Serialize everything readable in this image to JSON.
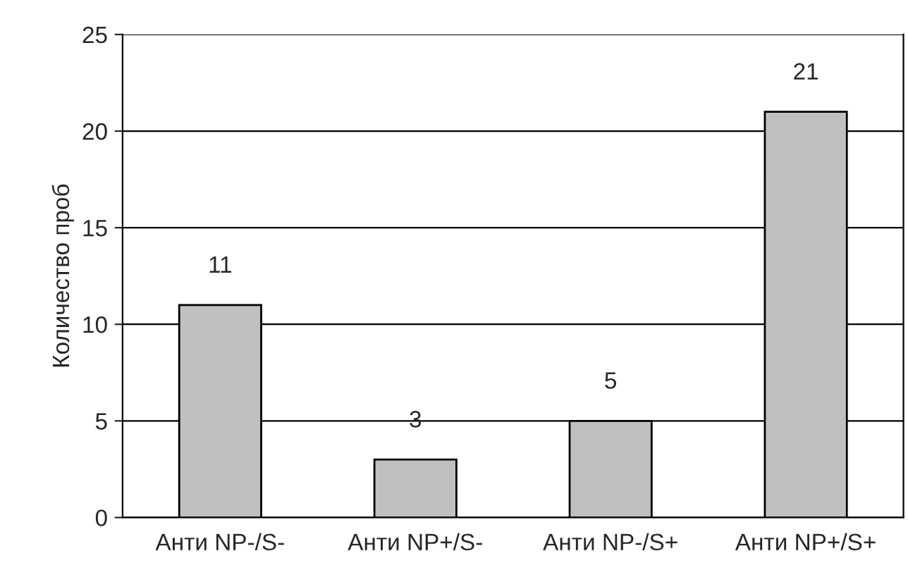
{
  "chart_data": {
    "type": "bar",
    "ylabel": "Количество проб",
    "categories": [
      "Анти NP-/S-",
      "Анти NP+/S-",
      "Анти NP-/S+",
      "Анти NP+/S+"
    ],
    "values": [
      11,
      3,
      5,
      21
    ],
    "color": "#c0c0c0",
    "ylim": [
      0,
      25
    ],
    "yticks": [
      0,
      5,
      10,
      15,
      20,
      25
    ],
    "grid": "y",
    "data_labels": true
  }
}
